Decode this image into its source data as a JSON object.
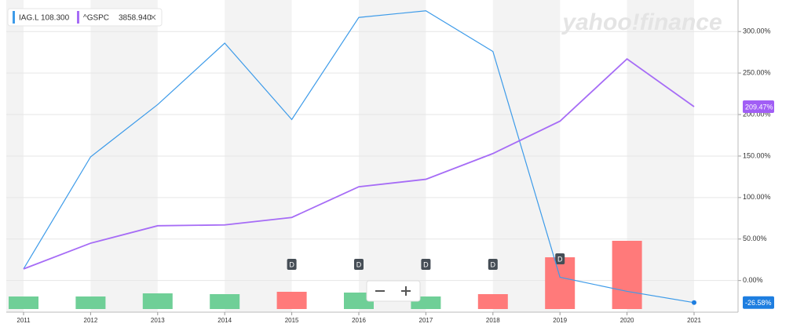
{
  "chart_data": {
    "type": "line",
    "watermark": "yahoo!finance",
    "categories": [
      "2011",
      "2012",
      "2013",
      "2014",
      "2015",
      "2016",
      "2017",
      "2018",
      "2019",
      "2020",
      "2021"
    ],
    "series": [
      {
        "name": "IAG.L",
        "price": "108.300",
        "color": "#3d9be9",
        "values": [
          14,
          149,
          212,
          286,
          194,
          317,
          325,
          276,
          4,
          -13,
          -26.58
        ],
        "value_labels": [
          null,
          null,
          null,
          null,
          null,
          null,
          null,
          null,
          null,
          null,
          "-26.58%"
        ]
      },
      {
        "name": "^GSPC",
        "price": "3858.940",
        "color": "#a66cf6",
        "values": [
          14,
          45,
          66,
          67,
          76,
          113,
          122,
          153,
          192,
          267,
          209.47
        ],
        "value_labels": [
          null,
          null,
          null,
          null,
          null,
          null,
          null,
          null,
          null,
          null,
          "209.47%"
        ]
      }
    ],
    "volume": {
      "axis": "y2",
      "values": [
        16,
        16,
        20,
        19,
        22,
        21,
        16,
        19,
        66,
        87,
        null
      ],
      "colors": [
        "#6fcf97",
        "#6fcf97",
        "#6fcf97",
        "#6fcf97",
        "#ff7a7a",
        "#6fcf97",
        "#6fcf97",
        "#ff7a7a",
        "#ff7a7a",
        "#ff7a7a",
        null
      ]
    },
    "y2lim": [
      0,
      100
    ],
    "dividends": {
      "label": "D",
      "categories": [
        "2015",
        "2016",
        "2017",
        "2018",
        "2019"
      ]
    },
    "ylim": [
      -40,
      338
    ],
    "yticks": [
      {
        "value": 0,
        "label": "0.00%"
      },
      {
        "value": 50,
        "label": "50.00%"
      },
      {
        "value": 100,
        "label": "100.00%"
      },
      {
        "value": 150,
        "label": "150.00%"
      },
      {
        "value": 200,
        "label": "200.00%"
      },
      {
        "value": 250,
        "label": "250.00%"
      },
      {
        "value": 300,
        "label": "300.00%"
      }
    ],
    "grid": true
  }
}
